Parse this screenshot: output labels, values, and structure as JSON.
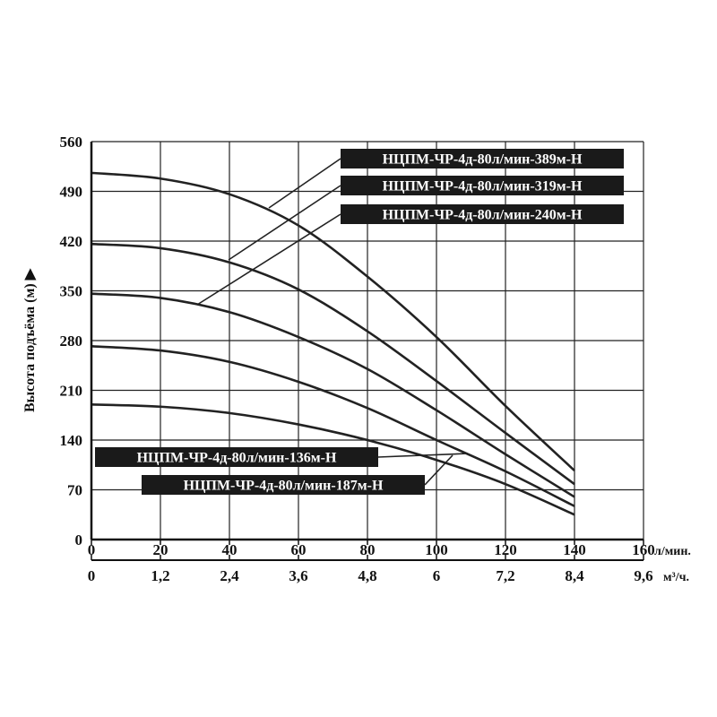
{
  "chart_data": {
    "type": "line",
    "xlabel": "л/мин.",
    "x2label": "м³/ч.",
    "ylabel": "Высота подъёма (м) ▶",
    "xlim": [
      0,
      160
    ],
    "ylim": [
      0,
      560
    ],
    "grid": true,
    "x_ticks": [
      "0",
      "20",
      "40",
      "60",
      "80",
      "100",
      "120",
      "140",
      "160"
    ],
    "x2_ticks": [
      "0",
      "1,2",
      "2,4",
      "3,6",
      "4,8",
      "6",
      "7,2",
      "8,4",
      "9,6"
    ],
    "y_ticks": [
      "0",
      "70",
      "140",
      "210",
      "280",
      "350",
      "420",
      "490",
      "560"
    ],
    "series": [
      {
        "name": "НЦПМ-ЧР-4д-80л/мин-389м-Н",
        "x": [
          0,
          20,
          40,
          60,
          80,
          100,
          120,
          140
        ],
        "y": [
          516,
          508,
          486,
          442,
          370,
          285,
          188,
          97
        ]
      },
      {
        "name": "НЦПМ-ЧР-4д-80л/мин-319м-Н",
        "x": [
          0,
          20,
          40,
          60,
          80,
          100,
          120,
          140
        ],
        "y": [
          416,
          410,
          390,
          352,
          293,
          223,
          150,
          78
        ]
      },
      {
        "name": "НЦПМ-ЧР-4д-80л/мин-240м-Н",
        "x": [
          0,
          20,
          40,
          60,
          80,
          100,
          120,
          140
        ],
        "y": [
          346,
          340,
          320,
          285,
          240,
          182,
          120,
          60
        ]
      },
      {
        "name": "НЦПМ-ЧР-4д-80л/мин-187м-Н",
        "x": [
          0,
          20,
          40,
          60,
          80,
          100,
          120,
          140
        ],
        "y": [
          272,
          266,
          250,
          222,
          185,
          140,
          96,
          47
        ]
      },
      {
        "name": "НЦПМ-ЧР-4д-80л/мин-136м-Н",
        "x": [
          0,
          20,
          40,
          60,
          80,
          100,
          120,
          140
        ],
        "y": [
          190,
          187,
          178,
          162,
          140,
          112,
          78,
          35
        ]
      }
    ]
  }
}
